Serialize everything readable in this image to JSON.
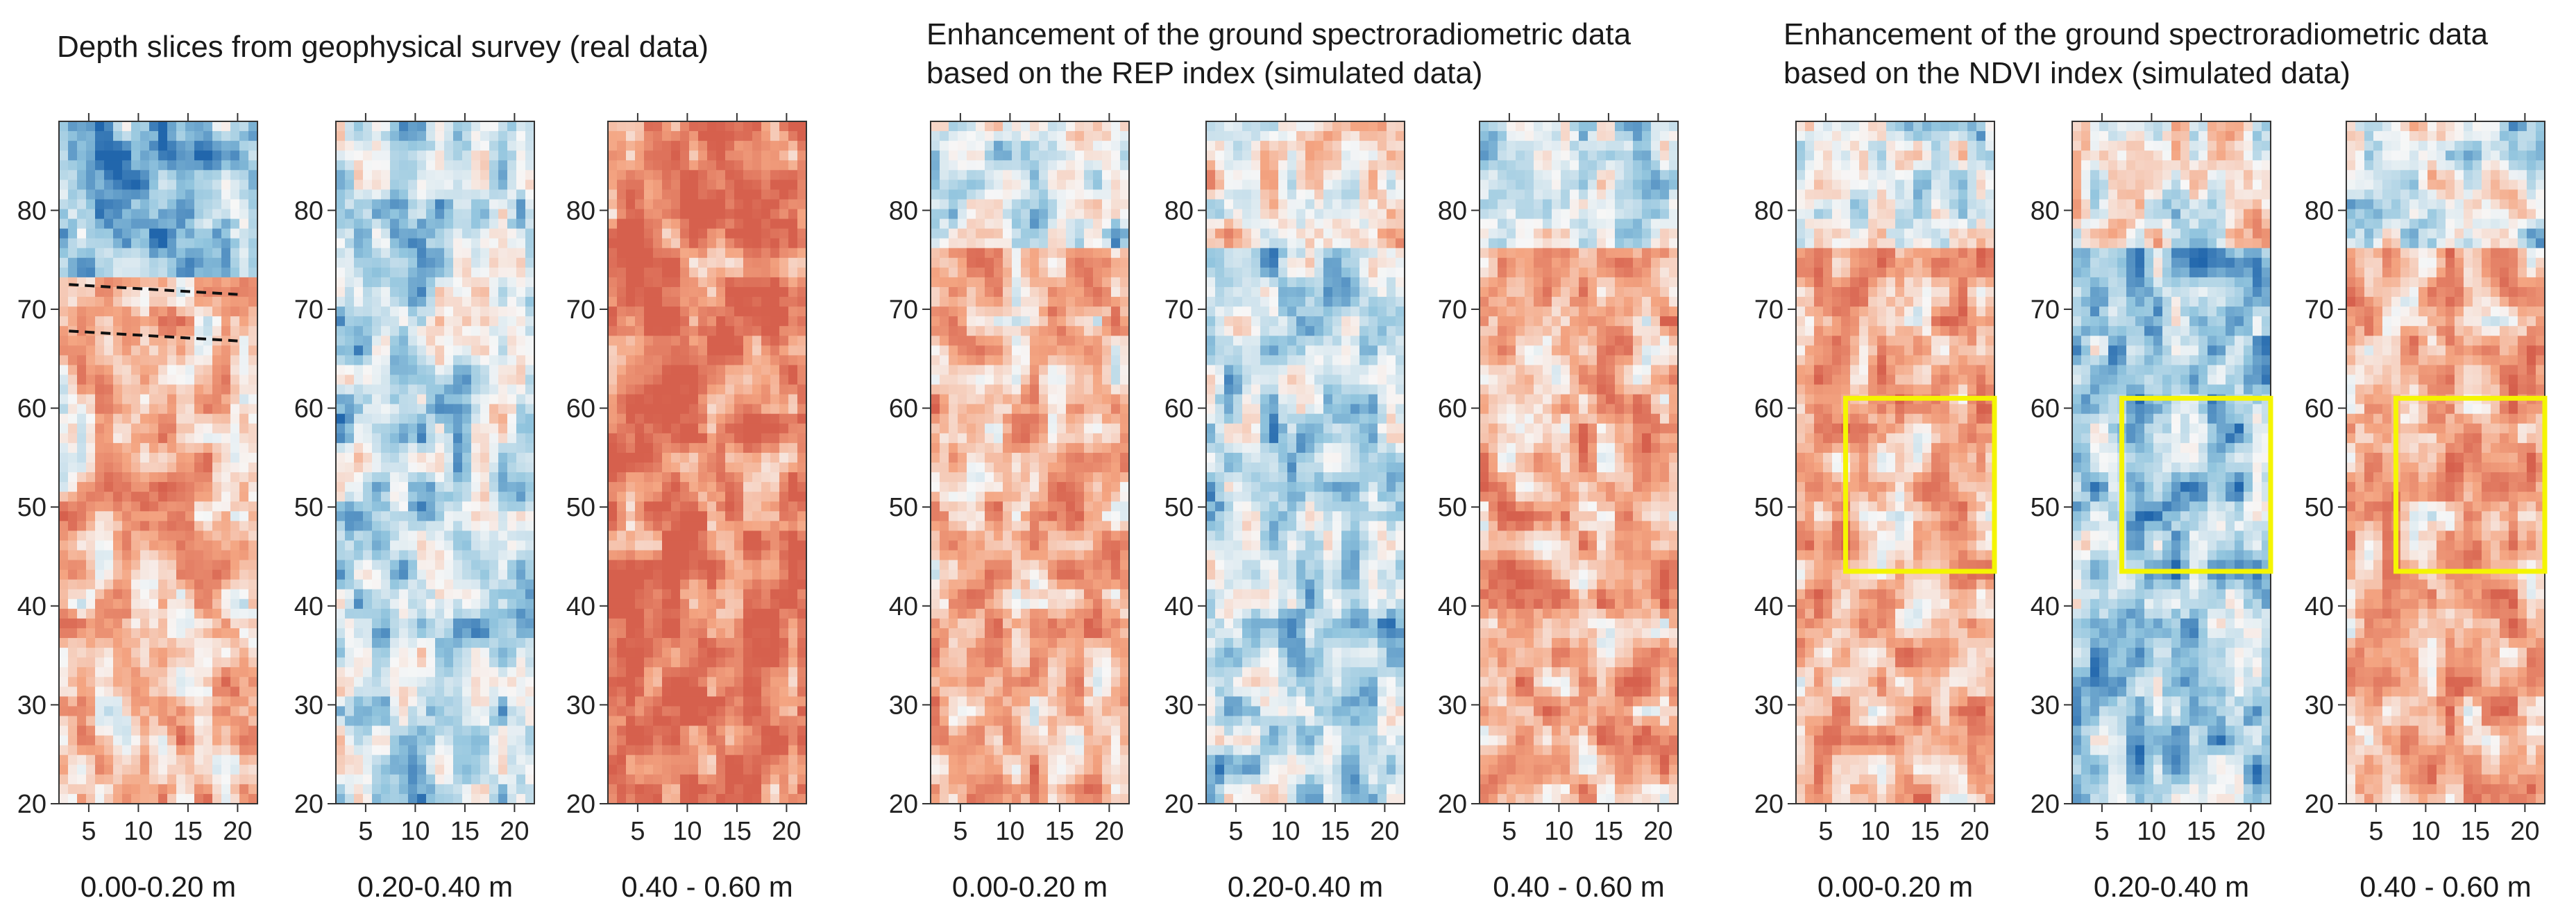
{
  "chart_data": {
    "type": "heatmap",
    "colormap": [
      "#2166ac",
      "#92c5de",
      "#f7f7f7",
      "#f4a582",
      "#d6604d"
    ],
    "x_ticks": [
      5,
      10,
      15,
      20
    ],
    "y_ticks": [
      20,
      30,
      40,
      50,
      60,
      70,
      80
    ],
    "xlim": [
      2,
      22
    ],
    "ylim": [
      20,
      89
    ],
    "groups": [
      {
        "title": "Depth slices from geophysical survey (real data)",
        "panels": [
          {
            "label": "0.00-0.20 m",
            "bias": 0.35,
            "dashed_lines": [
              {
                "x1": 3,
                "y1": 72.5,
                "x2": 20,
                "y2": 71.5
              },
              {
                "x1": 3,
                "y1": 67.8,
                "x2": 20,
                "y2": 66.8
              }
            ]
          },
          {
            "label": "0.20-0.40 m",
            "bias": -0.25
          },
          {
            "label": "0.40 - 0.60 m",
            "bias": 0.75
          }
        ]
      },
      {
        "title": "Enhancement of the ground spectroradiometric data\nbased on the REP index (simulated data)",
        "panels": [
          {
            "label": "0.00-0.20 m",
            "bias": 0.4
          },
          {
            "label": "0.20-0.40 m",
            "bias": -0.3
          },
          {
            "label": "0.40 - 0.60 m",
            "bias": 0.45
          }
        ]
      },
      {
        "title": "Enhancement of the ground spectroradiometric data\nbased on the NDVI index (simulated data)",
        "panels": [
          {
            "label": "0.00-0.20 m",
            "bias": 0.45,
            "box": {
              "x0": 7,
              "x1": 22,
              "y0": 43.5,
              "y1": 61
            }
          },
          {
            "label": "0.20-0.40 m",
            "bias": -0.45,
            "box": {
              "x0": 7,
              "x1": 22,
              "y0": 43.5,
              "y1": 61
            }
          },
          {
            "label": "0.40 - 0.60 m",
            "bias": 0.45,
            "box": {
              "x0": 7,
              "x1": 22,
              "y0": 43.5,
              "y1": 61
            }
          }
        ]
      }
    ]
  }
}
